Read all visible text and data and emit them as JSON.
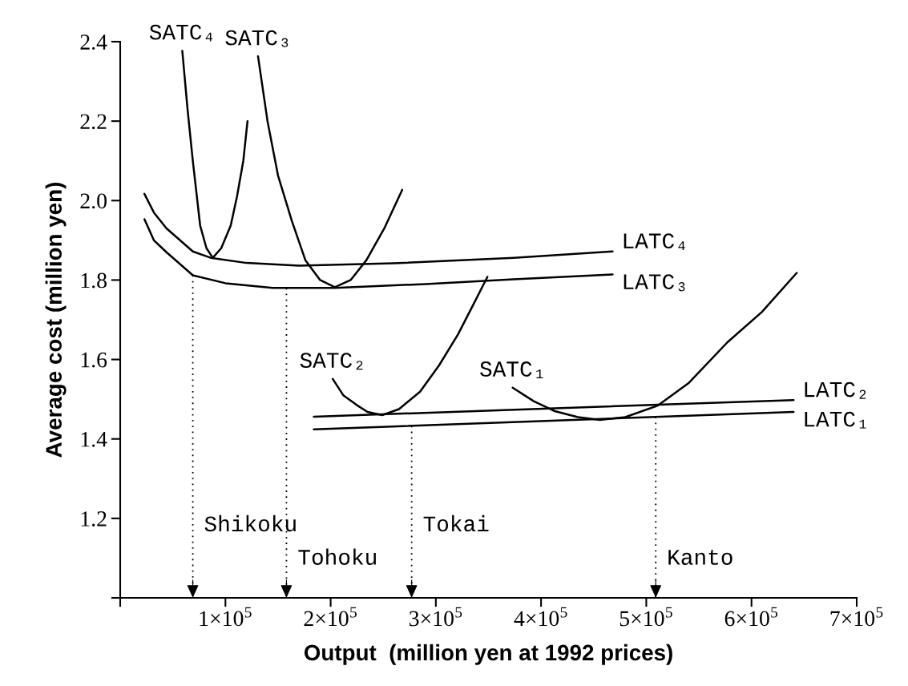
{
  "chart_data": {
    "type": "line",
    "xlabel": "Output  (million yen at 1992 prices)",
    "ylabel": "Average cost (million yen)",
    "xlim": [
      0,
      700000
    ],
    "ylim": [
      1.0,
      2.4
    ],
    "xticks": [
      {
        "value": 0,
        "label": null
      },
      {
        "value": 100000,
        "label": "1×10$^{5}$"
      },
      {
        "value": 200000,
        "label": "2×10$^{5}$"
      },
      {
        "value": 300000,
        "label": "3×10$^{5}$"
      },
      {
        "value": 400000,
        "label": "4×10$^{5}$"
      },
      {
        "value": 500000,
        "label": "5×10$^{5}$"
      },
      {
        "value": 600000,
        "label": "6×10$^{5}$"
      },
      {
        "value": 700000,
        "label": "7×10$^{5}$"
      }
    ],
    "yticks": [
      {
        "value": 1.0,
        "label": null
      },
      1.2,
      1.4,
      1.6,
      1.8,
      {
        "value": 2.0,
        "label": "2.0"
      },
      2.2,
      2.4
    ],
    "grid": false,
    "legend": false,
    "marker": "none",
    "line_style": "solid",
    "series": [
      {
        "name": "LATC₄",
        "color": "#000000",
        "x": [
          23000,
          32000,
          44000,
          69000,
          86000,
          120000,
          170000,
          260000,
          374000,
          468000
        ],
        "values": [
          2.017,
          1.97,
          1.93,
          1.872,
          1.856,
          1.843,
          1.836,
          1.842,
          1.856,
          1.872
        ]
      },
      {
        "name": "LATC₃",
        "color": "#000000",
        "x": [
          23000,
          32000,
          44000,
          69000,
          100000,
          145000,
          204000,
          290000,
          374000,
          468000
        ],
        "values": [
          1.953,
          1.9,
          1.87,
          1.812,
          1.792,
          1.78,
          1.78,
          1.79,
          1.802,
          1.814
        ]
      },
      {
        "name": "LATC₂",
        "color": "#000000",
        "x": [
          184000,
          640000
        ],
        "values": [
          1.456,
          1.498
        ]
      },
      {
        "name": "LATC₁",
        "color": "#000000",
        "x": [
          184000,
          640000
        ],
        "values": [
          1.424,
          1.468
        ]
      },
      {
        "name": "SATC₄",
        "color": "#000000",
        "x": [
          59000,
          64000,
          69000,
          76000,
          82000,
          88000,
          96000,
          105000,
          111000,
          117000,
          121000
        ],
        "values": [
          2.377,
          2.23,
          2.1,
          1.937,
          1.88,
          1.856,
          1.88,
          1.937,
          2.01,
          2.1,
          2.2
        ]
      },
      {
        "name": "SATC₃",
        "color": "#000000",
        "x": [
          131000,
          140000,
          150000,
          163000,
          176000,
          190000,
          204000,
          219000,
          234000,
          251000,
          268000
        ],
        "values": [
          2.363,
          2.2,
          2.063,
          1.95,
          1.85,
          1.8,
          1.782,
          1.8,
          1.85,
          1.93,
          2.027
        ]
      },
      {
        "name": "SATC₂",
        "color": "#000000",
        "x": [
          202000,
          212000,
          225000,
          235000,
          249000,
          265000,
          285000,
          303000,
          321000,
          335000,
          349000
        ],
        "values": [
          1.551,
          1.51,
          1.485,
          1.468,
          1.46,
          1.475,
          1.519,
          1.585,
          1.663,
          1.735,
          1.808
        ]
      },
      {
        "name": "SATC₁",
        "color": "#000000",
        "x": [
          373000,
          393000,
          413000,
          435000,
          456000,
          480000,
          511000,
          540000,
          577000,
          610000,
          643000
        ],
        "values": [
          1.529,
          1.495,
          1.47,
          1.455,
          1.448,
          1.455,
          1.484,
          1.54,
          1.643,
          1.72,
          1.818
        ]
      }
    ],
    "ref_lines": [
      {
        "axis": "x",
        "value": 69000,
        "label": "Shikoku",
        "line_style": "dotted"
      },
      {
        "axis": "x",
        "value": 158000,
        "label": "Tohoku",
        "line_style": "dotted"
      },
      {
        "axis": "x",
        "value": 277000,
        "label": "Tokai",
        "line_style": "dotted"
      },
      {
        "axis": "x",
        "value": 509000,
        "label": "Kanto",
        "line_style": "dotted"
      }
    ]
  }
}
